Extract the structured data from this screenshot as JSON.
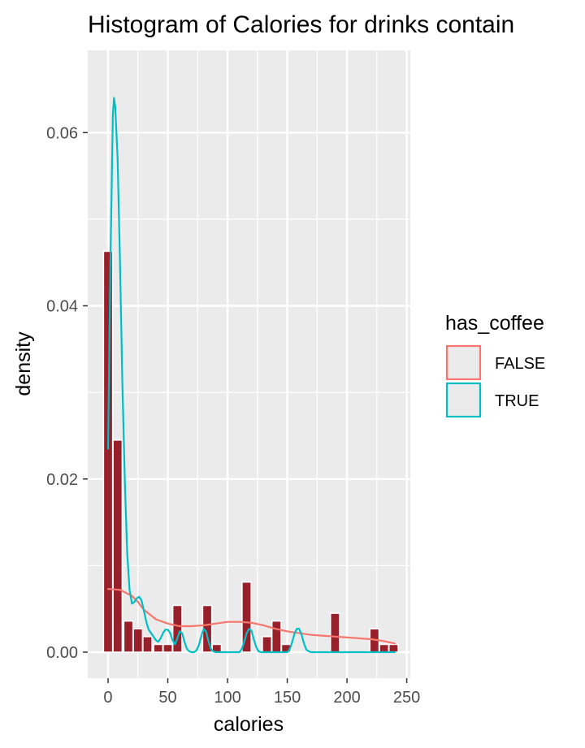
{
  "chart_data": {
    "type": "histogram",
    "title": "Histogram of Calories for drinks contain",
    "xlabel": "calories",
    "ylabel": "density",
    "xlim": [
      -17,
      253
    ],
    "ylim": [
      -0.003,
      0.0695
    ],
    "x_ticks": [
      0,
      50,
      100,
      150,
      200,
      250
    ],
    "x_tick_labels": [
      "0",
      "50",
      "100",
      "150",
      "200",
      "250"
    ],
    "y_ticks": [
      0,
      0.02,
      0.04,
      0.06
    ],
    "y_tick_labels": [
      "0.00",
      "0.02",
      "0.04",
      "0.06"
    ],
    "grid": true,
    "bin_width": 7.7,
    "bar_color": "#98202a",
    "bars": [
      {
        "x": 0,
        "density": 0.0463
      },
      {
        "x": 8,
        "density": 0.0245
      },
      {
        "x": 17,
        "density": 0.0036
      },
      {
        "x": 25,
        "density": 0.0027
      },
      {
        "x": 33,
        "density": 0.0018
      },
      {
        "x": 42,
        "density": 0.0009
      },
      {
        "x": 50,
        "density": 0.0009
      },
      {
        "x": 58,
        "density": 0.0054
      },
      {
        "x": 83,
        "density": 0.0054
      },
      {
        "x": 91,
        "density": 0.0009
      },
      {
        "x": 116,
        "density": 0.0081
      },
      {
        "x": 133,
        "density": 0.0018
      },
      {
        "x": 141,
        "density": 0.0036
      },
      {
        "x": 149,
        "density": 0.0009
      },
      {
        "x": 190,
        "density": 0.0045
      },
      {
        "x": 223,
        "density": 0.0027
      },
      {
        "x": 231,
        "density": 0.0009
      },
      {
        "x": 239,
        "density": 0.0009
      }
    ],
    "legend": {
      "title": "has_coffee",
      "position": "right",
      "entries": [
        {
          "label": "FALSE",
          "color": "#f8766d"
        },
        {
          "label": "TRUE",
          "color": "#00bfc4"
        }
      ]
    },
    "series": [
      {
        "name": "FALSE",
        "type": "density",
        "color": "#f8766d",
        "x": [
          0,
          10,
          20,
          25,
          30,
          40,
          50,
          60,
          70,
          80,
          90,
          100,
          110,
          120,
          130,
          140,
          150,
          160,
          170,
          180,
          190,
          200,
          210,
          220,
          230,
          240
        ],
        "y": [
          0.0073,
          0.0072,
          0.0065,
          0.0058,
          0.0049,
          0.0038,
          0.0033,
          0.003,
          0.003,
          0.0031,
          0.0033,
          0.0035,
          0.0035,
          0.0034,
          0.0031,
          0.0027,
          0.0024,
          0.0022,
          0.002,
          0.0019,
          0.0018,
          0.0017,
          0.0016,
          0.0015,
          0.0013,
          0.001
        ]
      },
      {
        "name": "TRUE",
        "type": "density",
        "color": "#00bfc4",
        "x": [
          0,
          2,
          4,
          5,
          6,
          8,
          10,
          12,
          14,
          16,
          18,
          20,
          22,
          24,
          26,
          28,
          30,
          32,
          34,
          36,
          38,
          40,
          42,
          44,
          46,
          48,
          50,
          52,
          54,
          56,
          58,
          60,
          62,
          64,
          66,
          68,
          70,
          72,
          74,
          76,
          78,
          80,
          82,
          84,
          86,
          88,
          90,
          100,
          110,
          112,
          114,
          116,
          118,
          120,
          122,
          124,
          126,
          128,
          130,
          150,
          152,
          154,
          156,
          158,
          160,
          162,
          164,
          166,
          168,
          170,
          200,
          240
        ],
        "y": [
          0.0235,
          0.045,
          0.062,
          0.064,
          0.063,
          0.057,
          0.045,
          0.031,
          0.02,
          0.0115,
          0.0072,
          0.0056,
          0.0058,
          0.0062,
          0.0064,
          0.006,
          0.0048,
          0.0035,
          0.0026,
          0.0022,
          0.0018,
          0.0014,
          0.0012,
          0.0016,
          0.0022,
          0.0026,
          0.0026,
          0.0022,
          0.0014,
          0.0009,
          0.0016,
          0.0024,
          0.0022,
          0.0012,
          0.0004,
          0.0001,
          0.0,
          0.0,
          0.0002,
          0.0008,
          0.0018,
          0.0027,
          0.0024,
          0.0013,
          0.0004,
          0.0001,
          0.0,
          0.0,
          0.0,
          0.0004,
          0.0012,
          0.0022,
          0.0027,
          0.0025,
          0.0015,
          0.0006,
          0.0001,
          0.0,
          0.0,
          0.0,
          0.0003,
          0.0011,
          0.0021,
          0.0027,
          0.0027,
          0.002,
          0.001,
          0.0003,
          0.0001,
          0.0,
          0.0,
          0.0
        ]
      }
    ]
  }
}
